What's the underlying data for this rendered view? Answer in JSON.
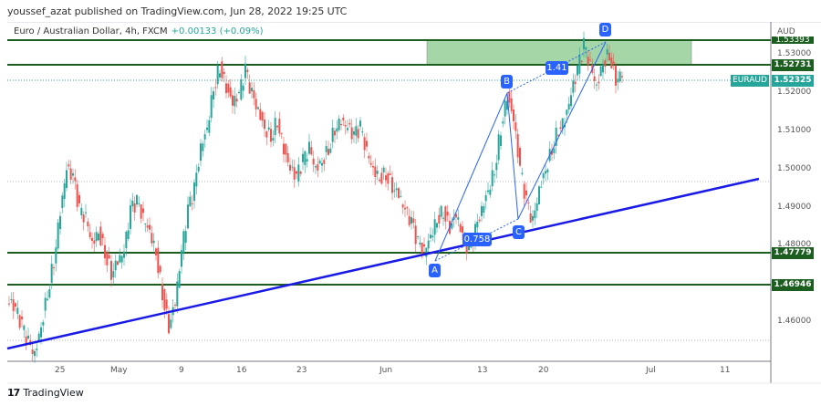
{
  "header": {
    "publisher_line": "youssef_azat published on TradingView.com, Jun 28, 2022 19:25 UTC"
  },
  "legend": {
    "symbol_description": "Euro / Australian Dollar, 4h, FXCM",
    "change": "+0.00133 (+0.09%)"
  },
  "footer": {
    "brand": "TradingView",
    "logo_glyph": "17"
  },
  "colors": {
    "up": "#26a69a",
    "down": "#ef5350",
    "level_line": "#1b5e20",
    "trendline": "#1a1ae6",
    "pattern": "#2962ff",
    "zone_fill": "#a5d6a7"
  },
  "chart_data": {
    "type": "candlestick",
    "title": "Euro / Australian Dollar, 4h, FXCM",
    "symbol": "EURAUD",
    "currency": "AUD",
    "x_tick_labels": [
      "25",
      "May",
      "9",
      "16",
      "23",
      "Jun",
      "13",
      "20",
      "Jul",
      "11"
    ],
    "y_tick_labels": [
      "1.53000",
      "1.52000",
      "1.51000",
      "1.50000",
      "1.49000",
      "1.48000",
      "1.46000"
    ],
    "ylim": [
      1.4535,
      1.5357
    ],
    "price_labels": {
      "zone_top": "1.53393",
      "resistance": "1.52731",
      "last_price": "1.52325",
      "support_1": "1.47779",
      "support_2": "1.46946"
    },
    "last_price_tag": "EURAUD",
    "horizontal_levels": [
      1.53393,
      1.52731,
      1.47779,
      1.46946
    ],
    "supply_zone": {
      "top": 1.53393,
      "bottom": 1.52731
    },
    "trendline": {
      "start": {
        "x_label": "~Apr 20",
        "price": 1.4525
      },
      "end": {
        "x_label": "~Jul 14",
        "price": 1.4975
      }
    },
    "harmonic_pattern": {
      "points": [
        {
          "label": "A",
          "price": 1.4795
        },
        {
          "label": "B",
          "price": 1.5195
        },
        {
          "label": "C",
          "price": 1.4865
        },
        {
          "label": "D",
          "price": 1.533
        }
      ],
      "ratios": [
        "0.758",
        "1.41"
      ]
    },
    "approx_close_series": [
      1.468,
      1.466,
      1.462,
      1.458,
      1.455,
      1.462,
      1.47,
      1.478,
      1.49,
      1.5,
      1.498,
      1.49,
      1.488,
      1.482,
      1.485,
      1.48,
      1.475,
      1.478,
      1.48,
      1.49,
      1.492,
      1.488,
      1.485,
      1.48,
      1.47,
      1.462,
      1.468,
      1.48,
      1.49,
      1.495,
      1.505,
      1.51,
      1.52,
      1.525,
      1.52,
      1.516,
      1.518,
      1.524,
      1.518,
      1.514,
      1.51,
      1.508,
      1.512,
      1.505,
      1.5,
      1.498,
      1.502,
      1.505,
      1.5,
      1.502,
      1.505,
      1.51,
      1.512,
      1.51,
      1.508,
      1.51,
      1.504,
      1.5,
      1.498,
      1.499,
      1.496,
      1.494,
      1.49,
      1.487,
      1.482,
      1.48,
      1.484,
      1.488,
      1.49,
      1.486,
      1.489,
      1.484,
      1.48,
      1.485,
      1.49,
      1.495,
      1.5,
      1.51,
      1.518,
      1.512,
      1.5,
      1.492,
      1.487,
      1.495,
      1.5,
      1.505,
      1.51,
      1.512,
      1.518,
      1.524,
      1.53,
      1.525,
      1.52,
      1.526,
      1.528,
      1.522,
      1.5233
    ]
  }
}
